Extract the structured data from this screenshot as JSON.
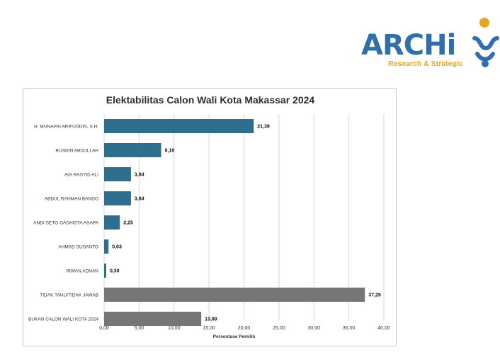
{
  "logo": {
    "word": "ARCHi",
    "tagline": "Research & Strategic",
    "colors": {
      "word": "#2f6faa",
      "tagline": "#e8a51e"
    }
  },
  "chart_data": {
    "type": "bar",
    "orientation": "horizontal",
    "title": "Elektabilitas Calon Wali Kota Makassar 2024",
    "xlabel": "Persentase Pemilih",
    "ylabel": "",
    "xlim": [
      0,
      40
    ],
    "xticks": [
      "0,00",
      "5,00",
      "10,00",
      "15,00",
      "20,00",
      "25,00",
      "30,00",
      "35,00",
      "40,00"
    ],
    "grid": "vertical",
    "categories": [
      "H. MUNAFRI ARIFUDDIN, S.H.",
      "RUSDIN ABDULLAH",
      "ADI RASYID ALI",
      "ABDUL RAHMAN BANDO",
      "ANDI SETO GADHISTA ASAPA",
      "AHMAD SUSANTO",
      "IRWAN ADNAN",
      "TIDAK TAHU/TIDAK JAWAB",
      "BUKAN CALON WALI KOTA 2024"
    ],
    "values": [
      21.39,
      8.16,
      3.84,
      3.84,
      2.25,
      0.63,
      0.3,
      37.29,
      13.89
    ],
    "value_labels": [
      "21,39",
      "8,16",
      "3,84",
      "3,84",
      "2,25",
      "0,63",
      "0,30",
      "37,29",
      "13,89"
    ],
    "bar_colors": [
      "#2e6f8e",
      "#2e6f8e",
      "#2e6f8e",
      "#2e6f8e",
      "#2e6f8e",
      "#2e6f8e",
      "#2e6f8e",
      "#767676",
      "#767676"
    ]
  }
}
